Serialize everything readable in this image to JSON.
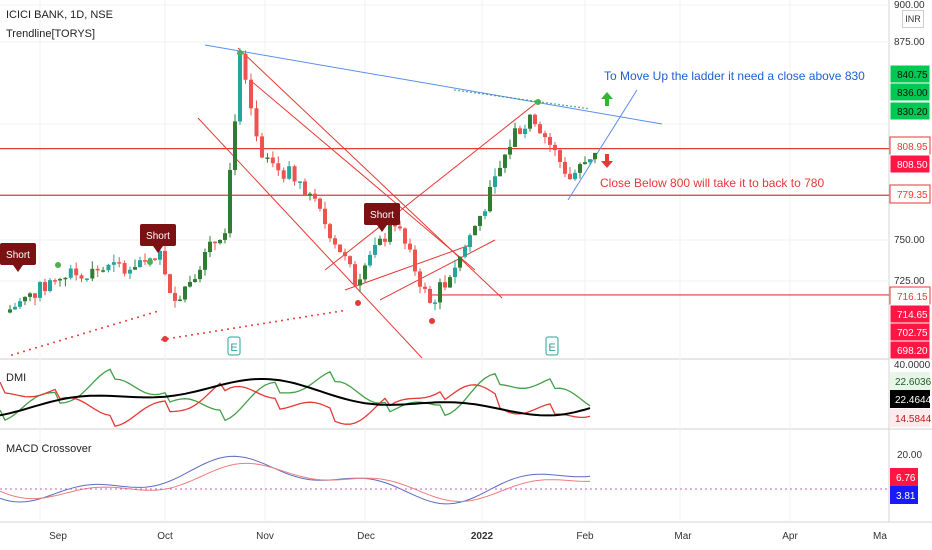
{
  "header": {
    "symbol_line": "ICICI BANK, 1D, NSE",
    "indicator_line": "Trendline[TORYS]",
    "currency": "INR"
  },
  "panes": {
    "dmi_label": "DMI",
    "macd_label": "MACD Crossover"
  },
  "annotations": {
    "up_note": "To Move Up the ladder it need a close above 830",
    "down_note": "Close Below 800 will take it to back to 780",
    "short_label": "Short",
    "earnings_label": "E"
  },
  "colors": {
    "up_candle": "#26a69a",
    "up_candle_alt": "#2e7d32",
    "down_candle": "#ef5350",
    "trend_red": "#e53935",
    "trend_blue": "#5b8def",
    "dmi_plus": "#43a047",
    "dmi_minus": "#e53935",
    "adx": "#000000",
    "macd": "#5c6bc0",
    "signal": "#ef7b7b",
    "short_flag": "#7b1113",
    "green_tag": "#00c853",
    "red_tag": "#ff1744"
  },
  "price_axis": {
    "ticks": [
      "900.00",
      "875.00",
      "750.00",
      "725.00"
    ],
    "tags": [
      {
        "text": "840.75",
        "type": "green",
        "value": 840.75
      },
      {
        "text": "836.00",
        "type": "green",
        "value": 836.0
      },
      {
        "text": "830.20",
        "type": "green",
        "value": 830.2
      },
      {
        "text": "808.95",
        "type": "red-outline",
        "value": 808.95
      },
      {
        "text": "808.50",
        "type": "red-fill",
        "value": 808.5
      },
      {
        "text": "779.35",
        "type": "red-outline",
        "value": 779.35
      },
      {
        "text": "716.15",
        "type": "red-outline",
        "value": 716.15
      },
      {
        "text": "714.65",
        "type": "red-fill",
        "value": 714.65
      },
      {
        "text": "702.75",
        "type": "red-fill",
        "value": 702.75
      },
      {
        "text": "698.20",
        "type": "red-fill",
        "value": 698.2
      }
    ],
    "hidden_tick": "825.00"
  },
  "dmi_axis": {
    "top_tick": "40.0000",
    "tags": [
      {
        "text": "22.6036",
        "type": "green"
      },
      {
        "text": "22.4644",
        "type": "black"
      },
      {
        "text": "14.5844",
        "type": "red"
      }
    ]
  },
  "macd_axis": {
    "top_tick": "20.00",
    "tags": [
      {
        "text": "6.76",
        "type": "red"
      },
      {
        "text": "3.81",
        "type": "blue"
      }
    ]
  },
  "time_axis": [
    "Sep",
    "Oct",
    "Nov",
    "Dec",
    "2022",
    "Feb",
    "Mar",
    "Apr",
    "Ma"
  ],
  "chart_data": {
    "type": "candlestick",
    "symbol": "ICICI BANK",
    "interval": "1D",
    "exchange": "NSE",
    "y_range": [
      690,
      905
    ],
    "horizontal_levels": [
      808.95,
      779.35,
      716.15
    ],
    "key_levels_text": {
      "resistance": 830,
      "support": 800,
      "target_down": 780
    },
    "approx_path": [
      {
        "period": "Aug end",
        "close": 705
      },
      {
        "period": "Sep mid",
        "close": 728
      },
      {
        "period": "Sep end",
        "close": 735
      },
      {
        "period": "Oct start",
        "close": 742
      },
      {
        "period": "Oct mid",
        "close": 712
      },
      {
        "period": "Oct 20",
        "close": 760
      },
      {
        "period": "Oct 25 high",
        "close": 865
      },
      {
        "period": "Nov start",
        "close": 800
      },
      {
        "period": "Nov mid",
        "close": 790
      },
      {
        "period": "Nov end",
        "close": 745
      },
      {
        "period": "Dec start",
        "close": 725
      },
      {
        "period": "Dec 10",
        "close": 763
      },
      {
        "period": "Dec 20 low",
        "close": 710
      },
      {
        "period": "Dec end",
        "close": 740
      },
      {
        "period": "Jan 5",
        "close": 780
      },
      {
        "period": "Jan 15",
        "close": 820
      },
      {
        "period": "Jan 20",
        "close": 828
      },
      {
        "period": "Jan end",
        "close": 790
      },
      {
        "period": "Feb start",
        "close": 808
      }
    ],
    "dmi": {
      "plus_di": 22.6036,
      "adx": 22.4644,
      "minus_di": 14.5844
    },
    "macd": {
      "macd": 3.81,
      "signal": 6.76
    }
  }
}
